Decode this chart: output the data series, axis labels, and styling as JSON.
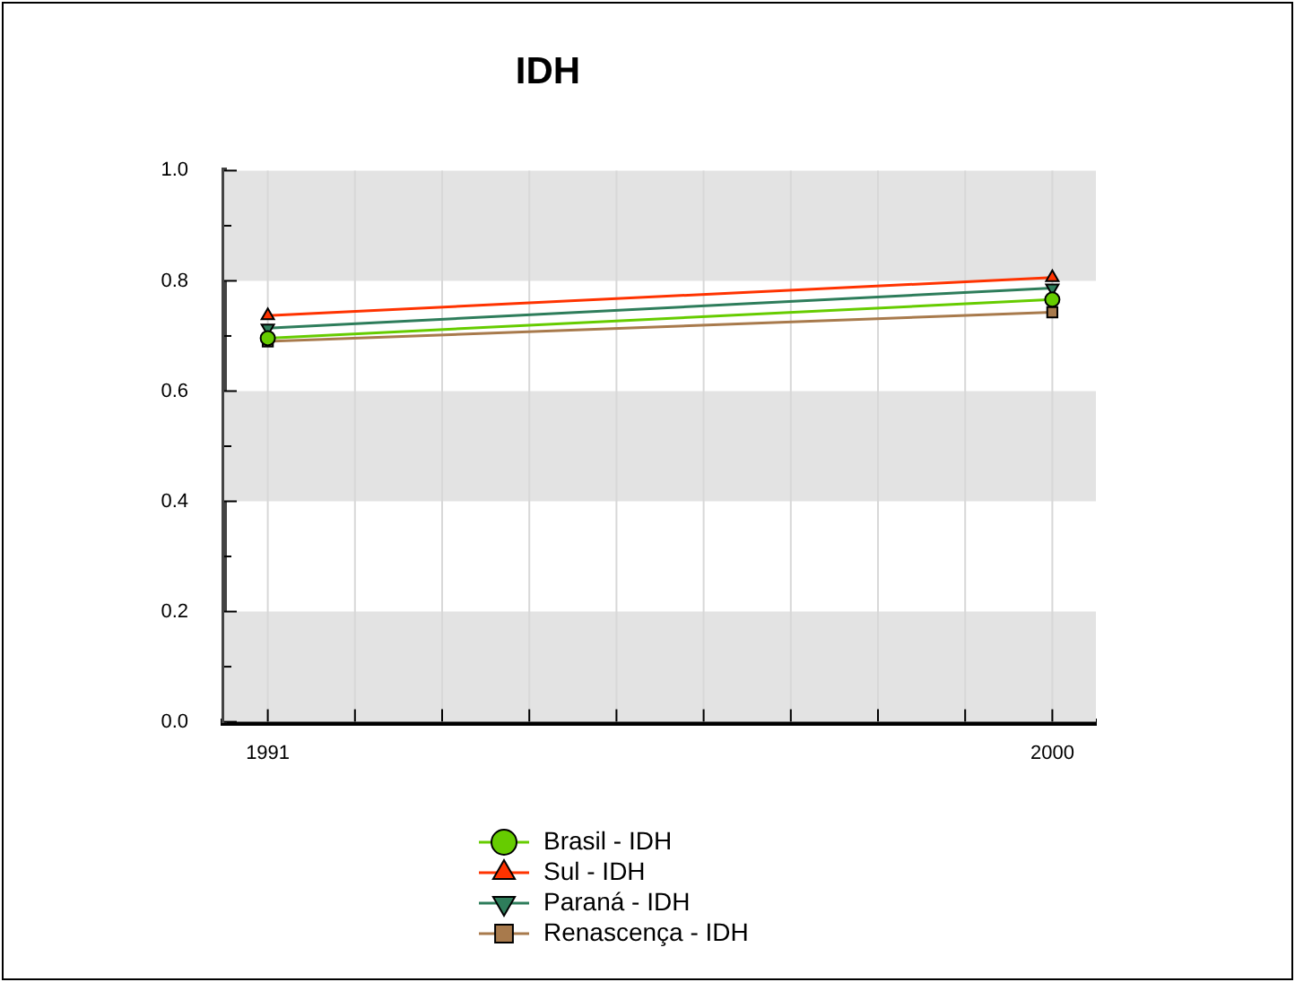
{
  "chart_data": {
    "type": "line",
    "title": "IDH",
    "x": [
      1991,
      2000
    ],
    "xlim": [
      1990.5,
      2000.5
    ],
    "xticks": [
      1991,
      {
        "value": 1992,
        "label": null
      },
      {
        "value": 1993,
        "label": null
      },
      {
        "value": 1994,
        "label": null
      },
      {
        "value": 1995,
        "label": null
      },
      {
        "value": 1996,
        "label": null
      },
      {
        "value": 1997,
        "label": null
      },
      {
        "value": 1998,
        "label": null
      },
      {
        "value": 1999,
        "label": null
      },
      2000
    ],
    "ylim": [
      0,
      1
    ],
    "yticks": [
      {
        "value": 0,
        "label": "0.0"
      },
      {
        "value": 0.1,
        "label": null
      },
      0.2,
      {
        "value": 0.3,
        "label": null
      },
      0.4,
      {
        "value": 0.5,
        "label": null
      },
      0.6,
      {
        "value": 0.7,
        "label": null
      },
      0.8,
      {
        "value": 0.9,
        "label": null
      },
      {
        "value": 1,
        "label": "1.0"
      }
    ],
    "grid": true,
    "legend": "bottom",
    "series": [
      {
        "name": "Brasil - IDH",
        "color": "#66cc00",
        "marker": "circle",
        "values": [
          0.696,
          0.766
        ]
      },
      {
        "name": "Sul - IDH",
        "color": "#ff3300",
        "marker": "triangle",
        "values": [
          0.737,
          0.806
        ]
      },
      {
        "name": "Paraná - IDH",
        "color": "#2e7d5b",
        "marker": "triangle-down",
        "values": [
          0.714,
          0.787
        ]
      },
      {
        "name": "Renascença - IDH",
        "color": "#a87a4c",
        "marker": "square",
        "values": [
          0.69,
          0.743
        ]
      }
    ]
  }
}
